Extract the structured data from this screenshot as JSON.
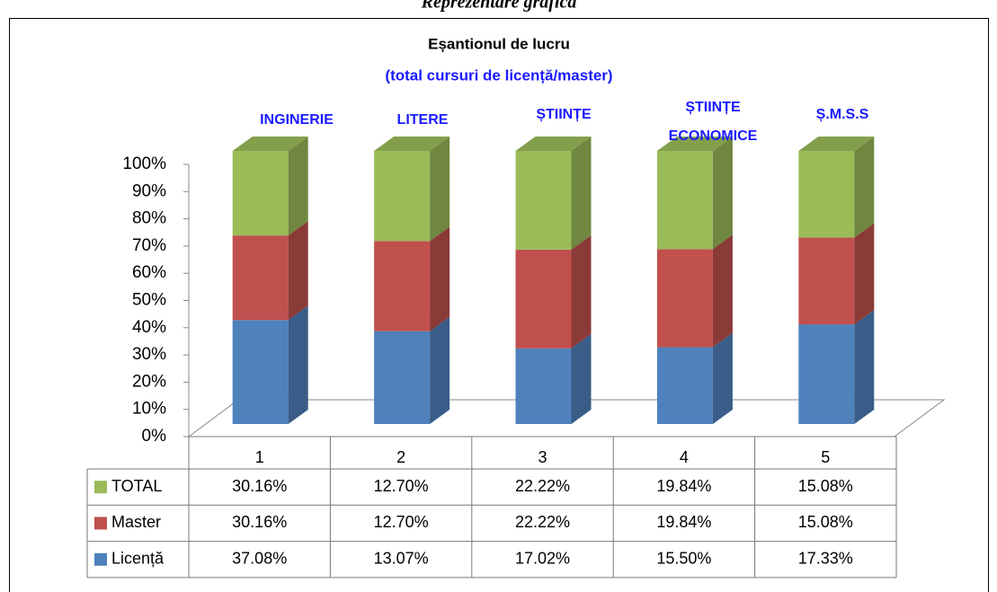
{
  "page_title": "Reprezentare grafică",
  "chart_data": {
    "type": "bar",
    "title": "Eșantionul de lucru",
    "subtitle": "(total cursuri de licență/master)",
    "stacked_percent": true,
    "categories": [
      "1",
      "2",
      "3",
      "4",
      "5"
    ],
    "annotations": [
      "INGINERIE",
      "LITERE",
      "ȘTIINȚE",
      "ȘTIINȚE ECONOMICE",
      "Ș.M.S.S"
    ],
    "series": [
      {
        "name": "Licență",
        "color": "#4f81bd",
        "values": [
          37.08,
          13.07,
          17.02,
          15.5,
          17.33
        ],
        "value_labels": [
          "37.08%",
          "13.07%",
          "17.02%",
          "15.50%",
          "17.33%"
        ]
      },
      {
        "name": "Master",
        "color": "#c0504d",
        "values": [
          30.16,
          12.7,
          22.22,
          19.84,
          15.08
        ],
        "value_labels": [
          "30.16%",
          "12.70%",
          "22.22%",
          "19.84%",
          "15.08%"
        ]
      },
      {
        "name": "TOTAL",
        "color": "#9bbb59",
        "values": [
          30.16,
          12.7,
          22.22,
          19.84,
          15.08
        ],
        "value_labels": [
          "30.16%",
          "12.70%",
          "22.22%",
          "19.84%",
          "15.08%"
        ]
      }
    ],
    "ylim": [
      0,
      100
    ],
    "yticks": [
      {
        "value": 0,
        "label": "0%"
      },
      {
        "value": 10,
        "label": "10%"
      },
      {
        "value": 20,
        "label": "20%"
      },
      {
        "value": 30,
        "label": "30%"
      },
      {
        "value": 40,
        "label": "40%"
      },
      {
        "value": 50,
        "label": "50%"
      },
      {
        "value": 60,
        "label": "60%"
      },
      {
        "value": 70,
        "label": "70%"
      },
      {
        "value": 80,
        "label": "80%"
      },
      {
        "value": 90,
        "label": "90%"
      },
      {
        "value": 100,
        "label": "100%"
      }
    ],
    "grid": false
  }
}
